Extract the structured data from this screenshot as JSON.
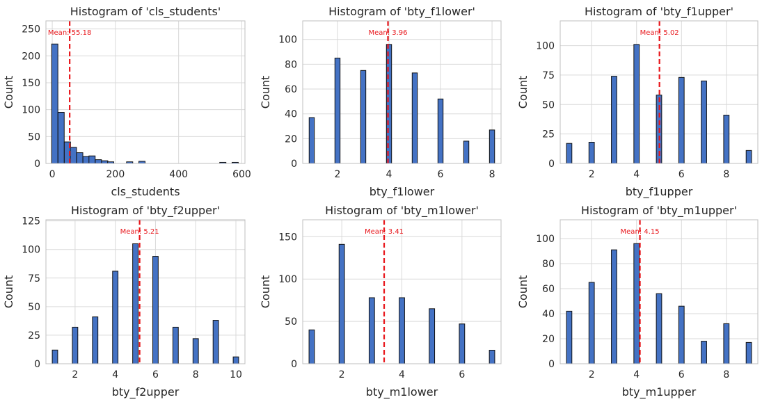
{
  "style": {
    "bar_color": "#4472C4",
    "bar_edge": "#111111",
    "mean_color": "#E8161B",
    "grid_color": "#D9D9D9",
    "axis_color": "#BFBFBF",
    "text_color": "#262626"
  },
  "chart_data": [
    {
      "type": "bar",
      "title": "Histogram of 'cls_students'",
      "xlabel": "cls_students",
      "ylabel": "Count",
      "xlim": [
        -20,
        610
      ],
      "ylim": [
        0,
        265
      ],
      "xticks": [
        0,
        200,
        400,
        600
      ],
      "yticks": [
        0,
        50,
        100,
        150,
        200,
        250
      ],
      "grid": true,
      "mean_label": "Mean: 55.18",
      "mean": 55.18,
      "bin_width": 19.7,
      "bins": [
        8,
        28,
        48,
        67,
        87,
        107,
        126,
        146,
        166,
        185,
        245,
        284,
        540,
        579
      ],
      "values": [
        222,
        95,
        40,
        30,
        20,
        13,
        14,
        7,
        5,
        3,
        3,
        4,
        2,
        2
      ]
    },
    {
      "type": "bar",
      "title": "Histogram of 'bty_f1lower'",
      "xlabel": "bty_f1lower",
      "ylabel": "Count",
      "xlim": [
        0.65,
        8.35
      ],
      "ylim": [
        0,
        115
      ],
      "xticks": [
        2,
        4,
        6,
        8
      ],
      "yticks": [
        0,
        20,
        40,
        60,
        80,
        100
      ],
      "grid": true,
      "mean_label": "Mean: 3.96",
      "mean": 3.96,
      "bin_width": 0.2,
      "bins": [
        1,
        2,
        3,
        4,
        5,
        6,
        7,
        8
      ],
      "values": [
        37,
        85,
        75,
        96,
        73,
        52,
        18,
        27
      ]
    },
    {
      "type": "bar",
      "title": "Histogram of 'bty_f1upper'",
      "xlabel": "bty_f1upper",
      "ylabel": "Count",
      "xlim": [
        0.6,
        9.4
      ],
      "ylim": [
        0,
        121
      ],
      "xticks": [
        2,
        4,
        6,
        8
      ],
      "yticks": [
        0,
        25,
        50,
        75,
        100
      ],
      "grid": true,
      "mean_label": "Mean: 5.02",
      "mean": 5.02,
      "bin_width": 0.24,
      "bins": [
        1,
        2,
        3,
        4,
        5,
        6,
        7,
        8,
        9
      ],
      "values": [
        17,
        18,
        74,
        101,
        58,
        73,
        70,
        41,
        11
      ]
    },
    {
      "type": "bar",
      "title": "Histogram of 'bty_f2upper'",
      "xlabel": "bty_f2upper",
      "ylabel": "Count",
      "xlim": [
        0.55,
        10.45
      ],
      "ylim": [
        0,
        126
      ],
      "xticks": [
        2,
        4,
        6,
        8,
        10
      ],
      "yticks": [
        0,
        25,
        50,
        75,
        100,
        125
      ],
      "grid": true,
      "mean_label": "Mean: 5.21",
      "mean": 5.21,
      "bin_width": 0.27,
      "bins": [
        1,
        2,
        3,
        4,
        5,
        6,
        7,
        8,
        9,
        10
      ],
      "values": [
        12,
        32,
        41,
        81,
        105,
        94,
        32,
        22,
        38,
        6
      ]
    },
    {
      "type": "bar",
      "title": "Histogram of 'bty_m1lower'",
      "xlabel": "bty_m1lower",
      "ylabel": "Count",
      "xlim": [
        0.7,
        7.3
      ],
      "ylim": [
        0,
        170
      ],
      "xticks": [
        2,
        4,
        6
      ],
      "yticks": [
        0,
        50,
        100,
        150
      ],
      "grid": true,
      "mean_label": "Mean: 3.41",
      "mean": 3.41,
      "bin_width": 0.18,
      "bins": [
        1,
        2,
        3,
        4,
        5,
        6,
        7
      ],
      "values": [
        40,
        141,
        78,
        78,
        65,
        47,
        16
      ]
    },
    {
      "type": "bar",
      "title": "Histogram of 'bty_m1upper'",
      "xlabel": "bty_m1upper",
      "ylabel": "Count",
      "xlim": [
        0.6,
        9.4
      ],
      "ylim": [
        0,
        115
      ],
      "xticks": [
        2,
        4,
        6,
        8
      ],
      "yticks": [
        0,
        20,
        40,
        60,
        80,
        100
      ],
      "grid": true,
      "mean_label": "Mean: 4.15",
      "mean": 4.15,
      "bin_width": 0.24,
      "bins": [
        1,
        2,
        3,
        4,
        5,
        6,
        7,
        8,
        9
      ],
      "values": [
        42,
        65,
        91,
        96,
        56,
        46,
        18,
        32,
        17
      ]
    }
  ]
}
